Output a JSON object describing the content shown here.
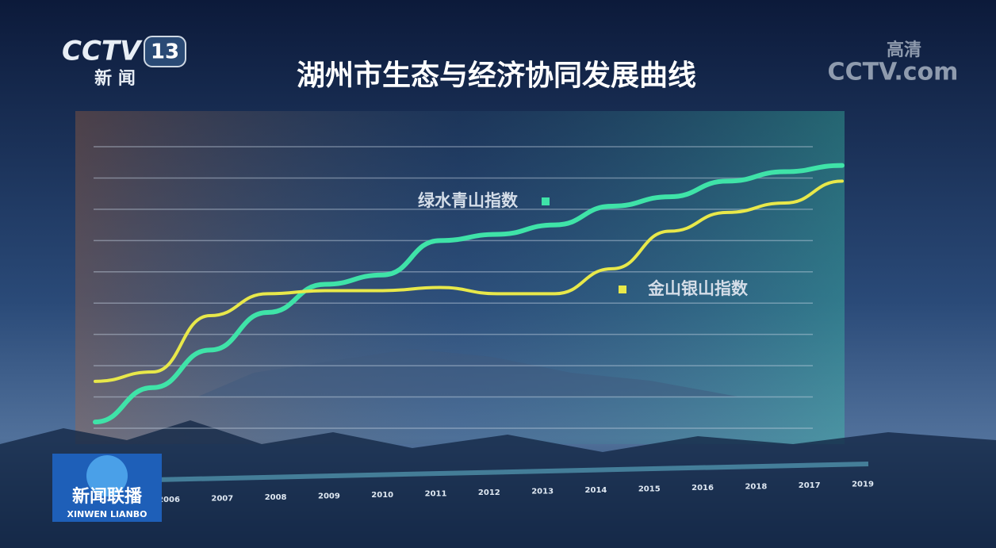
{
  "overlay": {
    "channel_logo": "CCTV",
    "channel_number": "13",
    "channel_name": "新 闻",
    "hd_badge": "高清",
    "site_logo": "CCTV.com",
    "program_name": "新闻联播",
    "program_pinyin": "XINWEN  LIANBO"
  },
  "chart_data": {
    "type": "line",
    "title": "湖州市生态与经济协同发展曲线",
    "categories": [
      "2006",
      "2007",
      "2008",
      "2009",
      "2010",
      "2011",
      "2012",
      "2013",
      "2014",
      "2015",
      "2016",
      "2018",
      "2017",
      "2019"
    ],
    "series": [
      {
        "name": "绿水青山指数",
        "color": "#3fe3a8",
        "values": [
          0.2,
          1.3,
          2.5,
          3.7,
          4.6,
          4.9,
          6.0,
          6.2,
          6.5,
          7.1,
          7.4,
          7.9,
          8.2,
          8.4
        ]
      },
      {
        "name": "金山银山指数",
        "color": "#e8e84a",
        "values": [
          1.5,
          1.8,
          3.6,
          4.3,
          4.4,
          4.4,
          4.5,
          4.3,
          4.3,
          5.1,
          6.3,
          6.9,
          7.2,
          7.9
        ]
      }
    ],
    "ylim": [
      0,
      9
    ],
    "gridlines": [
      0,
      1,
      2,
      3,
      4,
      5,
      6,
      7,
      8,
      9
    ],
    "grid": true
  }
}
